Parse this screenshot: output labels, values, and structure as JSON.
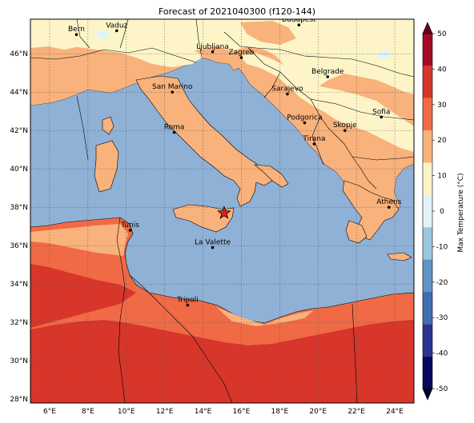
{
  "title": "Forecast of 2021040300 (f120-144)",
  "colorbar_label": "Max Temperature (°C)",
  "colors": {
    "sea": "#8fb1d6",
    "band_m10_0": "#e0f3f8",
    "band_0_10": "#fdf5c7",
    "band_10_20": "#f9b27b",
    "band_20_30": "#f06a45",
    "band_30_40": "#d8352b",
    "border": "#000000",
    "marker": "#e0201b"
  },
  "map": {
    "lon_range": [
      5,
      25
    ],
    "lat_range": [
      27.8,
      47.8
    ],
    "x_ticks": [
      "6°E",
      "8°E",
      "10°E",
      "12°E",
      "14°E",
      "16°E",
      "18°E",
      "20°E",
      "22°E",
      "24°E"
    ],
    "y_ticks": [
      "28°N",
      "30°N",
      "32°N",
      "34°N",
      "36°N",
      "38°N",
      "40°N",
      "42°N",
      "44°N",
      "46°N"
    ],
    "gridlines": true,
    "cities": [
      {
        "name": "Bern",
        "lon": 7.4,
        "lat": 47.0
      },
      {
        "name": "Vaduz",
        "lon": 9.5,
        "lat": 47.2
      },
      {
        "name": "Budapest",
        "lon": 19.0,
        "lat": 47.5
      },
      {
        "name": "Ljubljana",
        "lon": 14.5,
        "lat": 46.1
      },
      {
        "name": "Zagreb",
        "lon": 16.0,
        "lat": 45.8
      },
      {
        "name": "Belgrade",
        "lon": 20.5,
        "lat": 44.8
      },
      {
        "name": "San Marino",
        "lon": 12.4,
        "lat": 44.0
      },
      {
        "name": "Sarajevo",
        "lon": 18.4,
        "lat": 43.9
      },
      {
        "name": "Sofia",
        "lon": 23.3,
        "lat": 42.7
      },
      {
        "name": "Roma",
        "lon": 12.5,
        "lat": 41.9
      },
      {
        "name": "Podgorica",
        "lon": 19.3,
        "lat": 42.4
      },
      {
        "name": "Skopje",
        "lon": 21.4,
        "lat": 42.0
      },
      {
        "name": "Tirana",
        "lon": 19.8,
        "lat": 41.3
      },
      {
        "name": "Athens",
        "lon": 23.7,
        "lat": 38.0
      },
      {
        "name": "Tunis",
        "lon": 10.2,
        "lat": 36.8
      },
      {
        "name": "La Valette",
        "lon": 14.5,
        "lat": 35.9
      },
      {
        "name": "Tripoli",
        "lon": 13.2,
        "lat": 32.9
      }
    ],
    "marker": {
      "lon": 15.1,
      "lat": 37.7,
      "icon": "star-marker"
    }
  },
  "colorbar": {
    "ticks": [
      "-50",
      "-40",
      "-30",
      "-20",
      "-10",
      "0",
      "10",
      "20",
      "30",
      "40",
      "50"
    ],
    "bands": [
      "#08085e",
      "#2a3591",
      "#3f6db2",
      "#5f94c5",
      "#9cc7df",
      "#e0f3f8",
      "#fdf5c7",
      "#f9b27b",
      "#f06a45",
      "#d8352b",
      "#a50c24"
    ]
  }
}
